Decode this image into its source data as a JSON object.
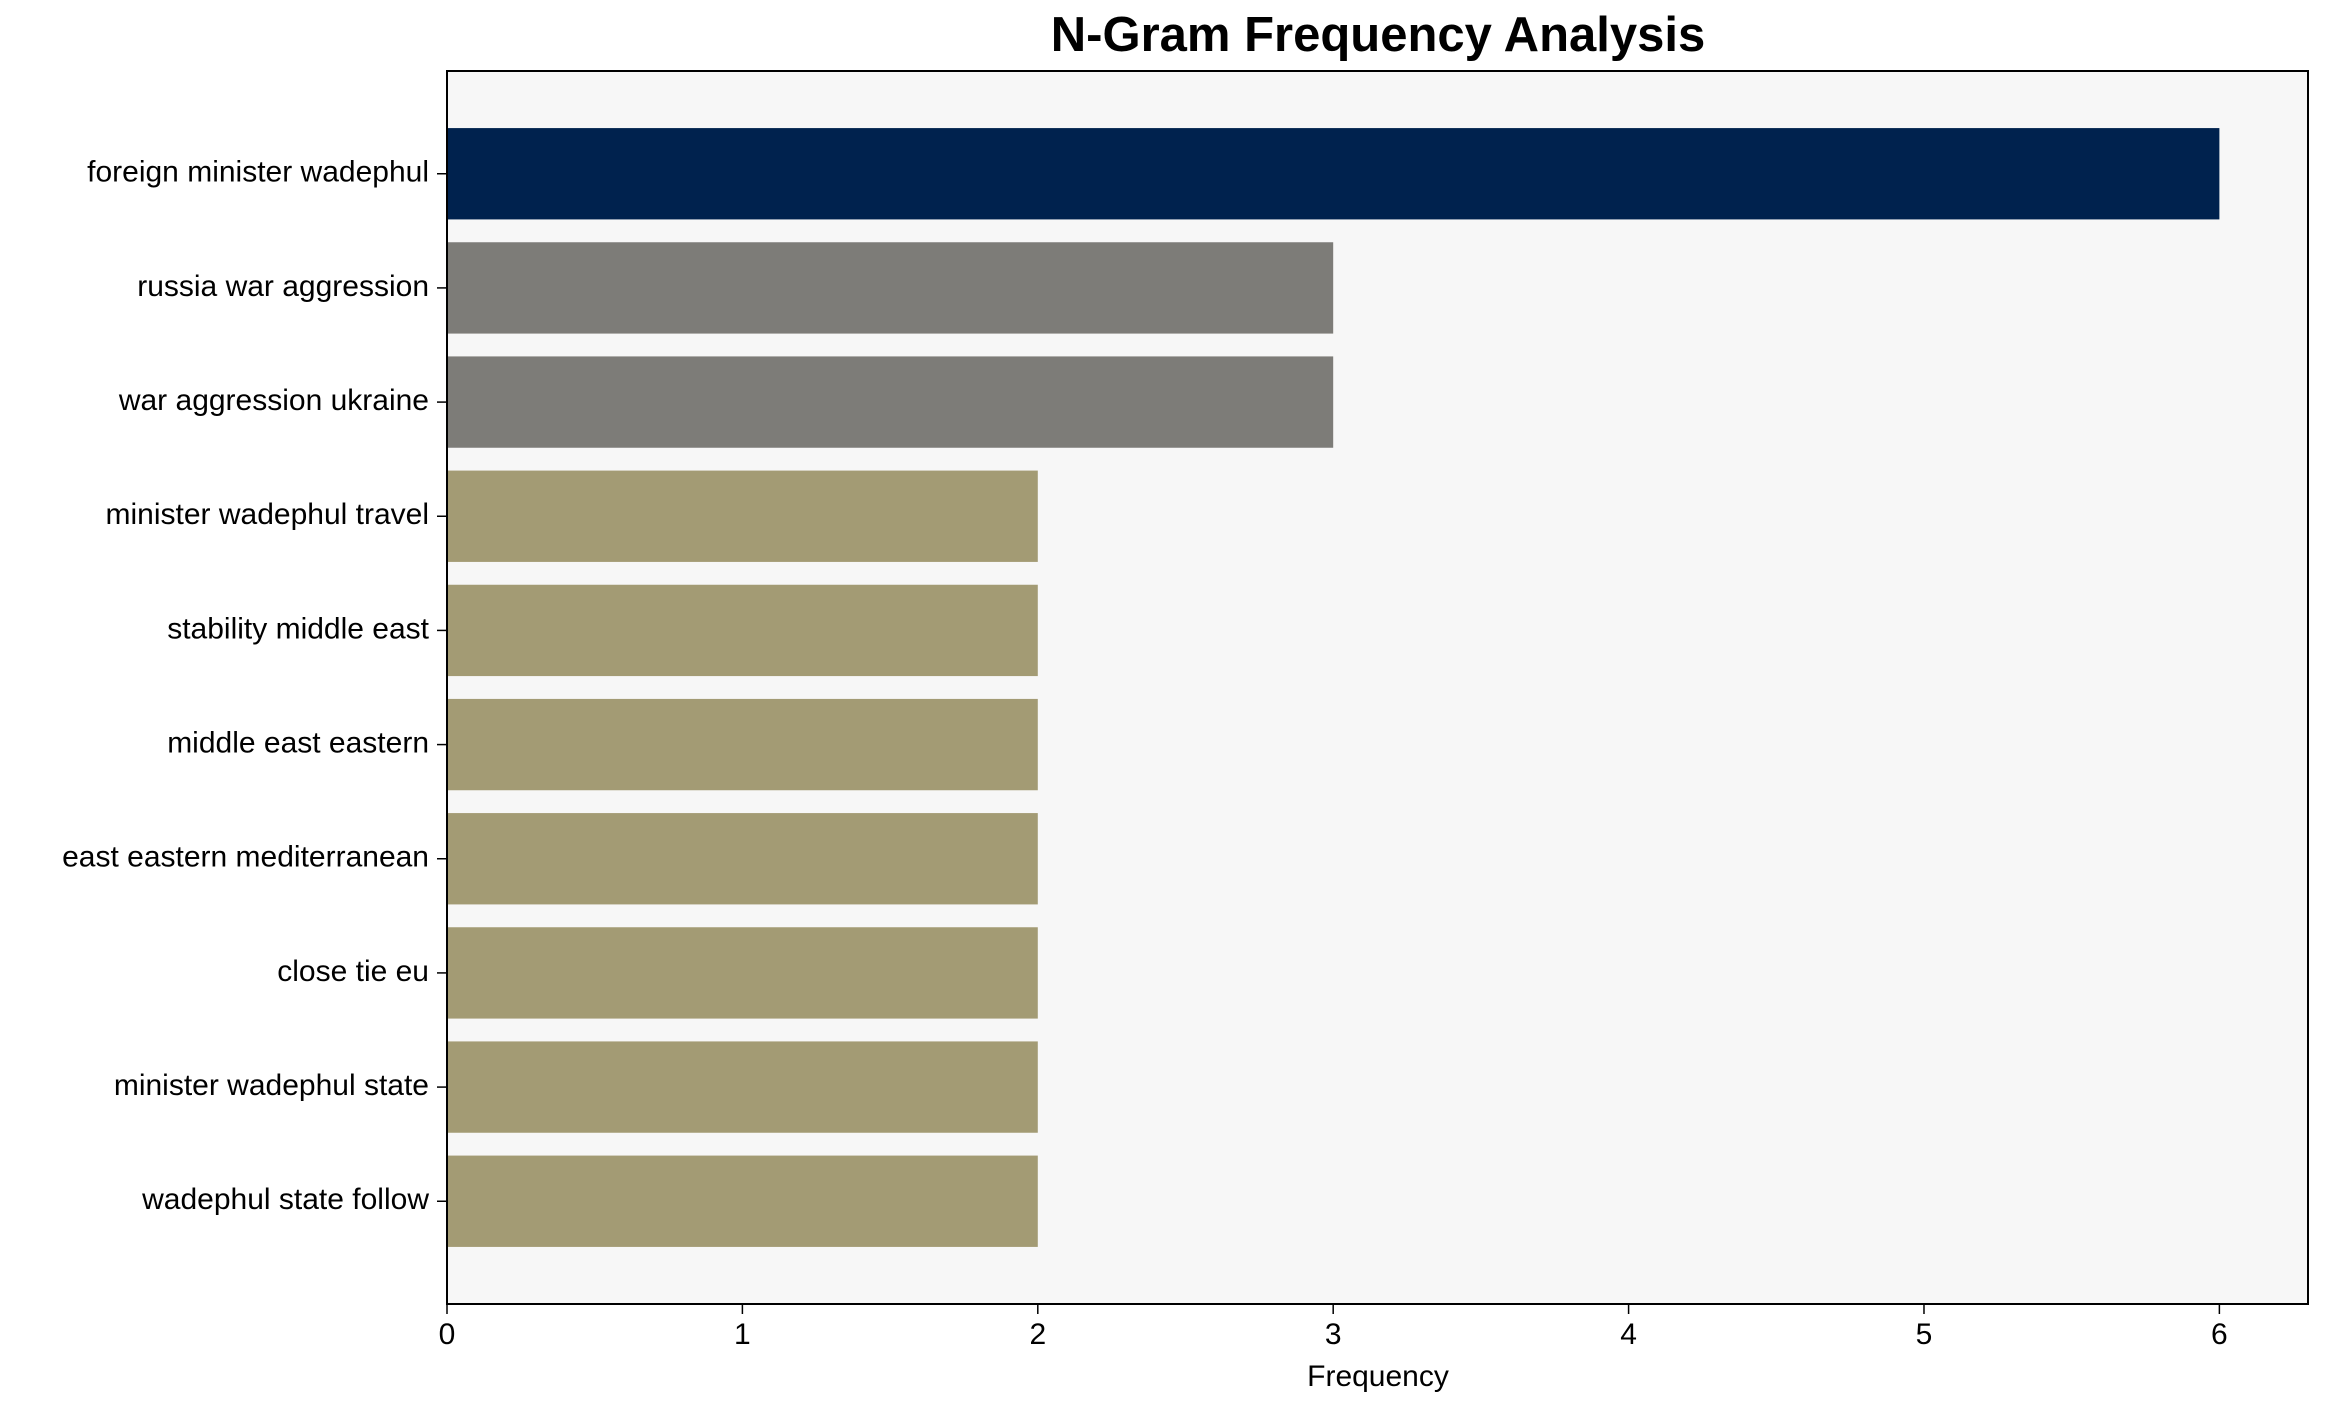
{
  "chart_data": {
    "type": "bar",
    "orientation": "horizontal",
    "title": "N-Gram Frequency Analysis",
    "xlabel": "Frequency",
    "categories": [
      "foreign minister wadephul",
      "russia war aggression",
      "war aggression ukraine",
      "minister wadephul travel",
      "stability middle east",
      "middle east eastern",
      "east eastern mediterranean",
      "close tie eu",
      "minister wadephul state",
      "wadephul state follow"
    ],
    "values": [
      6,
      3,
      3,
      2,
      2,
      2,
      2,
      2,
      2,
      2
    ],
    "colors": [
      "#00224e",
      "#7d7c78",
      "#7d7c78",
      "#a39b74",
      "#a39b74",
      "#a39b74",
      "#a39b74",
      "#a39b74",
      "#a39b74",
      "#a39b74"
    ],
    "xlim": [
      0,
      6.3
    ],
    "xticks": [
      0,
      1,
      2,
      3,
      4,
      5,
      6
    ],
    "grid": false
  }
}
